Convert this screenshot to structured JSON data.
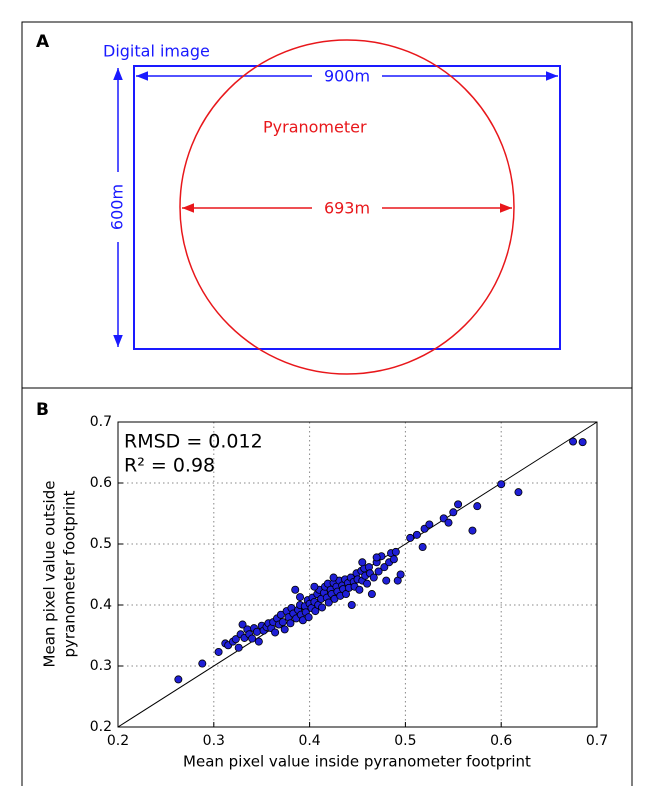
{
  "diagram": {
    "panel_label": "A",
    "rect_label": "Digital image",
    "width_label": "900m",
    "height_label": "600m",
    "circle_label": "Pyranometer",
    "diameter_label": "693m"
  },
  "chart_data": {
    "type": "scatter",
    "panel_label": "B",
    "xlabel": "Mean pixel value inside pyranometer footprint",
    "ylabel": [
      "Mean pixel value outside",
      "pyranometer footprint"
    ],
    "annotations": [
      "RMSD = 0.012",
      "R² = 0.98"
    ],
    "xlim": [
      0.2,
      0.7
    ],
    "ylim": [
      0.2,
      0.7
    ],
    "xticks": [
      0.2,
      0.3,
      0.4,
      0.5,
      0.6,
      0.7
    ],
    "yticks": [
      0.2,
      0.3,
      0.4,
      0.5,
      0.6,
      0.7
    ],
    "grid": true,
    "identity_line": true,
    "color": "#1f1fd6",
    "x": [
      0.263,
      0.288,
      0.305,
      0.312,
      0.315,
      0.32,
      0.323,
      0.326,
      0.328,
      0.33,
      0.332,
      0.335,
      0.337,
      0.34,
      0.342,
      0.345,
      0.347,
      0.35,
      0.352,
      0.355,
      0.357,
      0.36,
      0.362,
      0.364,
      0.366,
      0.368,
      0.37,
      0.372,
      0.374,
      0.376,
      0.378,
      0.38,
      0.381,
      0.383,
      0.385,
      0.386,
      0.388,
      0.39,
      0.391,
      0.393,
      0.395,
      0.396,
      0.398,
      0.399,
      0.4,
      0.402,
      0.403,
      0.405,
      0.406,
      0.408,
      0.409,
      0.41,
      0.412,
      0.413,
      0.415,
      0.416,
      0.418,
      0.419,
      0.42,
      0.422,
      0.423,
      0.425,
      0.426,
      0.428,
      0.429,
      0.431,
      0.432,
      0.434,
      0.435,
      0.437,
      0.438,
      0.44,
      0.441,
      0.443,
      0.444,
      0.446,
      0.447,
      0.449,
      0.45,
      0.452,
      0.454,
      0.455,
      0.457,
      0.458,
      0.46,
      0.462,
      0.463,
      0.465,
      0.467,
      0.47,
      0.472,
      0.475,
      0.478,
      0.48,
      0.483,
      0.485,
      0.488,
      0.49,
      0.492,
      0.495,
      0.505,
      0.512,
      0.518,
      0.52,
      0.525,
      0.54,
      0.545,
      0.55,
      0.555,
      0.57,
      0.575,
      0.6,
      0.618,
      0.675,
      0.685,
      0.39,
      0.405,
      0.425,
      0.455,
      0.47
    ],
    "values": [
      0.278,
      0.304,
      0.323,
      0.337,
      0.334,
      0.34,
      0.344,
      0.33,
      0.352,
      0.368,
      0.346,
      0.36,
      0.352,
      0.345,
      0.362,
      0.356,
      0.34,
      0.366,
      0.358,
      0.364,
      0.37,
      0.362,
      0.372,
      0.355,
      0.378,
      0.368,
      0.384,
      0.372,
      0.36,
      0.39,
      0.38,
      0.37,
      0.395,
      0.386,
      0.425,
      0.378,
      0.392,
      0.4,
      0.384,
      0.375,
      0.398,
      0.388,
      0.408,
      0.38,
      0.402,
      0.395,
      0.412,
      0.405,
      0.39,
      0.418,
      0.4,
      0.425,
      0.41,
      0.396,
      0.42,
      0.43,
      0.412,
      0.435,
      0.404,
      0.425,
      0.418,
      0.436,
      0.41,
      0.43,
      0.422,
      0.44,
      0.415,
      0.432,
      0.426,
      0.442,
      0.418,
      0.436,
      0.428,
      0.445,
      0.4,
      0.438,
      0.43,
      0.452,
      0.442,
      0.425,
      0.456,
      0.44,
      0.46,
      0.448,
      0.435,
      0.462,
      0.452,
      0.418,
      0.445,
      0.47,
      0.455,
      0.48,
      0.462,
      0.44,
      0.47,
      0.485,
      0.475,
      0.487,
      0.44,
      0.45,
      0.51,
      0.515,
      0.495,
      0.525,
      0.532,
      0.542,
      0.535,
      0.552,
      0.565,
      0.522,
      0.562,
      0.598,
      0.585,
      0.668,
      0.667,
      0.413,
      0.43,
      0.445,
      0.47,
      0.478
    ]
  }
}
